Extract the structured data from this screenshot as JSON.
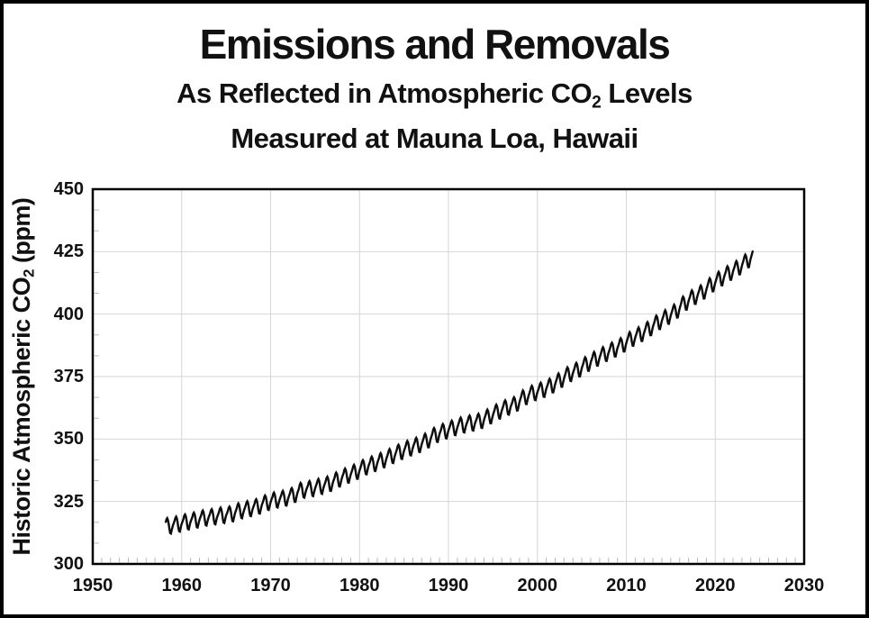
{
  "header": {
    "title": "Emissions and Removals",
    "subtitle": {
      "pre": "As Reflected in Atmospheric CO",
      "sub": "2",
      "post": " Levels"
    },
    "subtitle2": "Measured at Mauna Loa, Hawaii"
  },
  "y_axis": {
    "title": {
      "pre": "Historic Atmospheric CO",
      "sub": "2",
      "post": " (ppm)"
    },
    "tick_labels": [
      300,
      325,
      350,
      375,
      400,
      425,
      450
    ],
    "gridlines": [
      325,
      350,
      375,
      400,
      425
    ],
    "minor_tick_step": 8.3333
  },
  "x_axis": {
    "tick_labels": [
      1950,
      1960,
      1970,
      1980,
      1990,
      2000,
      2010,
      2020,
      2030
    ],
    "gridlines": [
      1960,
      1970,
      1980,
      1990,
      2000,
      2010,
      2020
    ],
    "minor_tick_step_years": 1
  },
  "colors": {
    "background": "#ffffff",
    "frame": "#000000",
    "plot_border": "#000000",
    "line": "#0d0d0d",
    "gridline": "#d6d6d6",
    "minor_tick": "#b8b8b8",
    "text": "#111111"
  },
  "chart_data": {
    "type": "line",
    "title": "Emissions and Removals",
    "subtitle": "As Reflected in Atmospheric CO2 Levels Measured at Mauna Loa, Hawaii",
    "xlabel": "",
    "ylabel": "Historic Atmospheric CO2 (ppm)",
    "xlim": [
      1950,
      2030
    ],
    "ylim": [
      300,
      450
    ],
    "grid": true,
    "legend": false,
    "series_name": "Mauna Loa monthly mean atmospheric CO2",
    "data_start_decimal_year": 1958.2,
    "data_end_decimal_year": 2024.25,
    "annual_means_start_year": 1958,
    "annual_means_ppm": [
      315.3,
      316.0,
      316.9,
      317.6,
      318.5,
      319.0,
      319.6,
      320.0,
      321.4,
      322.2,
      323.0,
      324.6,
      325.7,
      326.3,
      327.5,
      329.7,
      330.2,
      331.1,
      332.0,
      333.8,
      335.4,
      336.8,
      338.8,
      340.1,
      341.5,
      343.2,
      344.9,
      346.4,
      347.6,
      349.3,
      351.7,
      353.2,
      354.5,
      355.7,
      356.5,
      357.2,
      359.0,
      361.0,
      362.7,
      363.9,
      366.8,
      368.5,
      369.7,
      371.3,
      373.5,
      376.0,
      377.7,
      380.0,
      382.1,
      384.0,
      385.8,
      387.6,
      390.1,
      391.9,
      394.1,
      396.7,
      398.8,
      401.0,
      404.4,
      406.8,
      408.7,
      411.7,
      414.2,
      416.4,
      418.5,
      421.1,
      424.6
    ],
    "seasonal_cycle_monthly_anomaly_ppm": [
      0.0,
      0.7,
      1.5,
      2.6,
      3.0,
      2.3,
      0.7,
      -1.5,
      -3.1,
      -3.3,
      -2.1,
      -0.9
    ]
  }
}
